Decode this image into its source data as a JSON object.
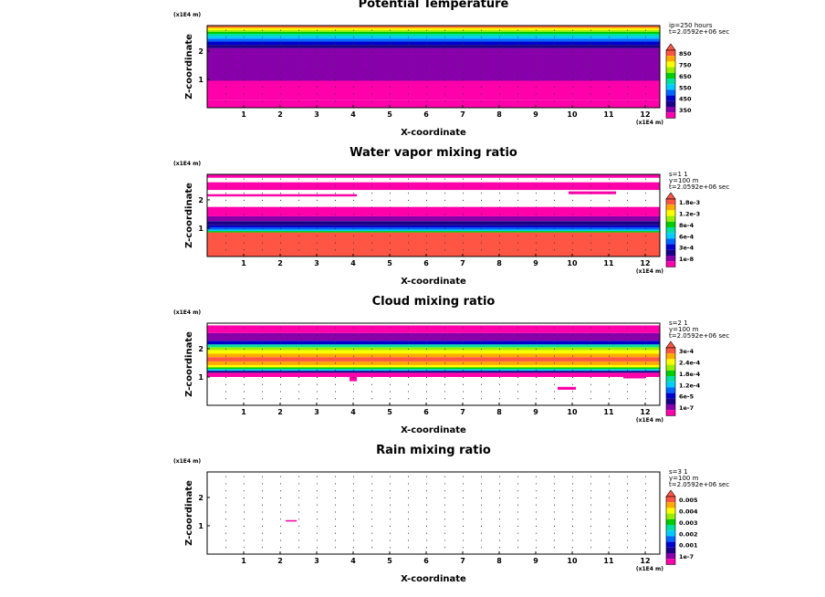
{
  "colors": [
    "#ff00aa",
    "#8800aa",
    "#1a0088",
    "#0000cc",
    "#0066ff",
    "#00ccff",
    "#00e0a0",
    "#00cc00",
    "#99ee00",
    "#ffff00",
    "#ffaa00",
    "#ff5544"
  ],
  "chart_data": [
    {
      "type": "heatmap",
      "title": "Potential Temperature",
      "xlabel": "X-coordinate",
      "ylabel": "Z-coordinate",
      "x_unit": "(x1E4 m)",
      "z_unit": "(x1E4 m)",
      "xlim": [
        0,
        12.4
      ],
      "ylim": [
        0,
        2.9
      ],
      "xticks": [
        "1",
        "2",
        "3",
        "4",
        "5",
        "6",
        "7",
        "8",
        "9",
        "10",
        "11",
        "12"
      ],
      "yticks": [
        "1",
        "2"
      ],
      "info": [
        "ip=250 hours",
        "t=2.0592e+06 sec"
      ],
      "legend_levels": [
        "850",
        "750",
        "650",
        "550",
        "450",
        "350"
      ],
      "bands": [
        {
          "z0": 0.0,
          "z1": 0.28,
          "color": 0
        },
        {
          "z0": 0.28,
          "z1": 0.95,
          "color": 0
        },
        {
          "z0": 0.95,
          "z1": 2.1,
          "color": 1
        },
        {
          "z0": 2.1,
          "z1": 2.22,
          "color": 2
        },
        {
          "z0": 2.22,
          "z1": 2.34,
          "color": 3
        },
        {
          "z0": 2.34,
          "z1": 2.44,
          "color": 4
        },
        {
          "z0": 2.44,
          "z1": 2.53,
          "color": 5
        },
        {
          "z0": 2.53,
          "z1": 2.61,
          "color": 6
        },
        {
          "z0": 2.61,
          "z1": 2.68,
          "color": 7
        },
        {
          "z0": 2.68,
          "z1": 2.74,
          "color": 8
        },
        {
          "z0": 2.74,
          "z1": 2.8,
          "color": 9
        },
        {
          "z0": 2.8,
          "z1": 2.85,
          "color": 10
        },
        {
          "z0": 2.85,
          "z1": 2.9,
          "color": 11
        }
      ],
      "patches": []
    },
    {
      "type": "heatmap",
      "title": "Water vapor mixing ratio",
      "xlabel": "X-coordinate",
      "ylabel": "Z-coordinate",
      "x_unit": "(x1E4 m)",
      "z_unit": "(x1E4 m)",
      "xlim": [
        0,
        12.4
      ],
      "ylim": [
        0,
        2.9
      ],
      "xticks": [
        "1",
        "2",
        "3",
        "4",
        "5",
        "6",
        "7",
        "8",
        "9",
        "10",
        "11",
        "12"
      ],
      "yticks": [
        "1",
        "2"
      ],
      "info": [
        "s=1 1",
        "y=100 m",
        "t=2.0592e+06 sec"
      ],
      "legend_levels": [
        "1.8e-3",
        "1.2e-3",
        "8e-4",
        "6e-4",
        "3e-4",
        "1e-8"
      ],
      "bands": [
        {
          "z0": 0.0,
          "z1": 0.85,
          "color": 11
        },
        {
          "z0": 0.85,
          "z1": 0.9,
          "color": 7
        },
        {
          "z0": 0.9,
          "z1": 0.95,
          "color": 5
        },
        {
          "z0": 0.95,
          "z1": 1.02,
          "color": 4
        },
        {
          "z0": 1.02,
          "z1": 1.1,
          "color": 3
        },
        {
          "z0": 1.1,
          "z1": 1.25,
          "color": 2
        },
        {
          "z0": 1.25,
          "z1": 1.42,
          "color": 1
        },
        {
          "z0": 1.42,
          "z1": 1.75,
          "color": 0
        },
        {
          "z0": 1.75,
          "z1": 2.35,
          "color": -1
        },
        {
          "z0": 2.35,
          "z1": 2.62,
          "color": 0
        },
        {
          "z0": 2.62,
          "z1": 2.78,
          "color": -1
        },
        {
          "z0": 2.78,
          "z1": 2.9,
          "color": 0
        }
      ],
      "patches": [
        {
          "x0": 0.0,
          "x1": 4.1,
          "z0": 2.12,
          "z1": 2.2,
          "color": 0
        },
        {
          "x0": 9.9,
          "x1": 11.2,
          "z0": 2.2,
          "z1": 2.3,
          "color": 0
        }
      ]
    },
    {
      "type": "heatmap",
      "title": "Cloud mixing ratio",
      "xlabel": "X-coordinate",
      "ylabel": "Z-coordinate",
      "x_unit": "(x1E4 m)",
      "z_unit": "(x1E4 m)",
      "xlim": [
        0,
        12.4
      ],
      "ylim": [
        0,
        2.9
      ],
      "xticks": [
        "1",
        "2",
        "3",
        "4",
        "5",
        "6",
        "7",
        "8",
        "9",
        "10",
        "11",
        "12"
      ],
      "yticks": [
        "1",
        "2"
      ],
      "info": [
        "s=2 1",
        "y=100 m",
        "t=2.0592e+06 sec"
      ],
      "legend_levels": [
        "3e-4",
        "2.4e-4",
        "1.8e-4",
        "1.2e-4",
        "6e-5",
        "1e-7"
      ],
      "bands": [
        {
          "z0": 0.0,
          "z1": 1.0,
          "color": -1
        },
        {
          "z0": 1.0,
          "z1": 1.15,
          "color": 0
        },
        {
          "z0": 1.15,
          "z1": 1.22,
          "color": 2
        },
        {
          "z0": 1.22,
          "z1": 1.28,
          "color": 5
        },
        {
          "z0": 1.28,
          "z1": 1.34,
          "color": 7
        },
        {
          "z0": 1.34,
          "z1": 1.42,
          "color": 9
        },
        {
          "z0": 1.42,
          "z1": 1.55,
          "color": 10
        },
        {
          "z0": 1.55,
          "z1": 1.7,
          "color": 11
        },
        {
          "z0": 1.7,
          "z1": 1.82,
          "color": 10
        },
        {
          "z0": 1.82,
          "z1": 1.95,
          "color": 9
        },
        {
          "z0": 1.95,
          "z1": 2.05,
          "color": 8
        },
        {
          "z0": 2.05,
          "z1": 2.15,
          "color": 6
        },
        {
          "z0": 2.15,
          "z1": 2.28,
          "color": 3
        },
        {
          "z0": 2.28,
          "z1": 2.55,
          "color": 1
        },
        {
          "z0": 2.55,
          "z1": 2.82,
          "color": 0
        },
        {
          "z0": 2.82,
          "z1": 2.9,
          "color": -1
        }
      ],
      "patches": [
        {
          "x0": 3.9,
          "x1": 4.1,
          "z0": 0.85,
          "z1": 1.0,
          "color": 0
        },
        {
          "x0": 9.6,
          "x1": 10.1,
          "z0": 0.55,
          "z1": 0.65,
          "color": 0
        },
        {
          "x0": 11.4,
          "x1": 12.0,
          "z0": 0.95,
          "z1": 1.05,
          "color": 0
        }
      ]
    },
    {
      "type": "heatmap",
      "title": "Rain mixing ratio",
      "xlabel": "X-coordinate",
      "ylabel": "Z-coordinate",
      "x_unit": "(x1E4 m)",
      "z_unit": "(x1E4 m)",
      "xlim": [
        0,
        12.4
      ],
      "ylim": [
        0,
        2.9
      ],
      "xticks": [
        "1",
        "2",
        "3",
        "4",
        "5",
        "6",
        "7",
        "8",
        "9",
        "10",
        "11",
        "12"
      ],
      "yticks": [
        "1",
        "2"
      ],
      "info": [
        "s=3 1",
        "y=100 m",
        "t=2.0592e+06 sec"
      ],
      "legend_levels": [
        "0.005",
        "0.004",
        "0.003",
        "0.002",
        "0.001",
        "1e-7"
      ],
      "bands": [
        {
          "z0": 0.0,
          "z1": 2.9,
          "color": -1
        }
      ],
      "patches": [
        {
          "x0": 2.15,
          "x1": 2.45,
          "z0": 1.15,
          "z1": 1.2,
          "color": 0
        }
      ]
    }
  ]
}
